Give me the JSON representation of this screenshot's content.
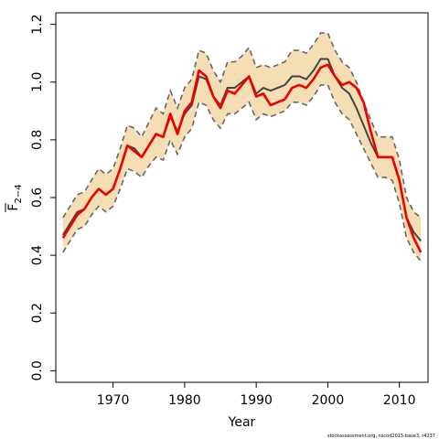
{
  "chart_data": {
    "type": "line",
    "title": "",
    "xlabel": "Year",
    "ylabel": "F",
    "ylabel_sub": "2−4",
    "xlim": [
      1962,
      2014
    ],
    "ylim": [
      -0.04,
      1.24
    ],
    "xticks": [
      1970,
      1980,
      1990,
      2000,
      2010
    ],
    "yticks": [
      0.0,
      0.2,
      0.4,
      0.6,
      0.8,
      1.0,
      1.2
    ],
    "ytick_labels": [
      "0.0",
      "0.2",
      "0.4",
      "0.6",
      "0.8",
      "1.0",
      "1.2"
    ],
    "x": [
      1963,
      1964,
      1965,
      1966,
      1967,
      1968,
      1969,
      1970,
      1971,
      1972,
      1973,
      1974,
      1975,
      1976,
      1977,
      1978,
      1979,
      1980,
      1981,
      1982,
      1983,
      1984,
      1985,
      1986,
      1987,
      1988,
      1989,
      1990,
      1991,
      1992,
      1993,
      1994,
      1995,
      1996,
      1997,
      1998,
      1999,
      2000,
      2001,
      2002,
      2003,
      2004,
      2005,
      2006,
      2007,
      2008,
      2009,
      2010,
      2011,
      2012,
      2013
    ],
    "series": [
      {
        "role": "estimate",
        "color": "#444444",
        "values": [
          0.47,
          0.51,
          0.55,
          0.56,
          0.6,
          0.63,
          0.61,
          0.63,
          0.7,
          0.78,
          0.77,
          0.74,
          0.78,
          0.82,
          0.81,
          0.88,
          0.83,
          0.89,
          0.92,
          1.02,
          1.01,
          0.95,
          0.92,
          0.98,
          0.98,
          1.0,
          1.02,
          0.96,
          0.98,
          0.97,
          0.98,
          0.99,
          1.02,
          1.02,
          1.01,
          1.04,
          1.08,
          1.08,
          1.02,
          0.98,
          0.96,
          0.91,
          0.85,
          0.79,
          0.74,
          0.74,
          0.74,
          0.66,
          0.53,
          0.48,
          0.45
        ]
      },
      {
        "role": "comparison",
        "color": "#ee0000",
        "values": [
          0.46,
          0.5,
          0.54,
          0.56,
          0.6,
          0.63,
          0.61,
          0.63,
          0.7,
          0.78,
          0.76,
          0.74,
          0.78,
          0.82,
          0.81,
          0.89,
          0.82,
          0.9,
          0.93,
          1.04,
          1.02,
          0.95,
          0.91,
          0.97,
          0.96,
          0.99,
          1.02,
          0.95,
          0.96,
          0.92,
          0.93,
          0.94,
          0.98,
          0.99,
          0.98,
          1.01,
          1.05,
          1.06,
          1.02,
          0.99,
          1.0,
          0.98,
          0.93,
          0.83,
          0.74,
          0.74,
          0.74,
          0.66,
          0.53,
          0.46,
          0.41
        ]
      }
    ],
    "band": {
      "color": "#f5deb3",
      "border_color": "#666666",
      "lower": [
        0.41,
        0.45,
        0.49,
        0.5,
        0.54,
        0.57,
        0.55,
        0.57,
        0.63,
        0.7,
        0.69,
        0.67,
        0.71,
        0.74,
        0.73,
        0.8,
        0.75,
        0.81,
        0.84,
        0.93,
        0.92,
        0.87,
        0.84,
        0.89,
        0.89,
        0.91,
        0.93,
        0.87,
        0.89,
        0.88,
        0.89,
        0.9,
        0.93,
        0.93,
        0.92,
        0.95,
        0.99,
        0.99,
        0.93,
        0.89,
        0.87,
        0.82,
        0.77,
        0.72,
        0.67,
        0.67,
        0.66,
        0.58,
        0.46,
        0.41,
        0.38
      ],
      "upper": [
        0.53,
        0.57,
        0.61,
        0.62,
        0.66,
        0.7,
        0.68,
        0.7,
        0.77,
        0.85,
        0.84,
        0.81,
        0.86,
        0.91,
        0.89,
        0.97,
        0.91,
        0.98,
        1.01,
        1.11,
        1.1,
        1.04,
        1.0,
        1.07,
        1.07,
        1.09,
        1.12,
        1.05,
        1.06,
        1.05,
        1.06,
        1.07,
        1.11,
        1.11,
        1.1,
        1.13,
        1.17,
        1.17,
        1.11,
        1.07,
        1.05,
        1.0,
        0.93,
        0.87,
        0.81,
        0.81,
        0.81,
        0.73,
        0.6,
        0.55,
        0.53
      ]
    },
    "grid": false,
    "footnote": "stockassessment.org, nscod2015-base3, r4237"
  }
}
